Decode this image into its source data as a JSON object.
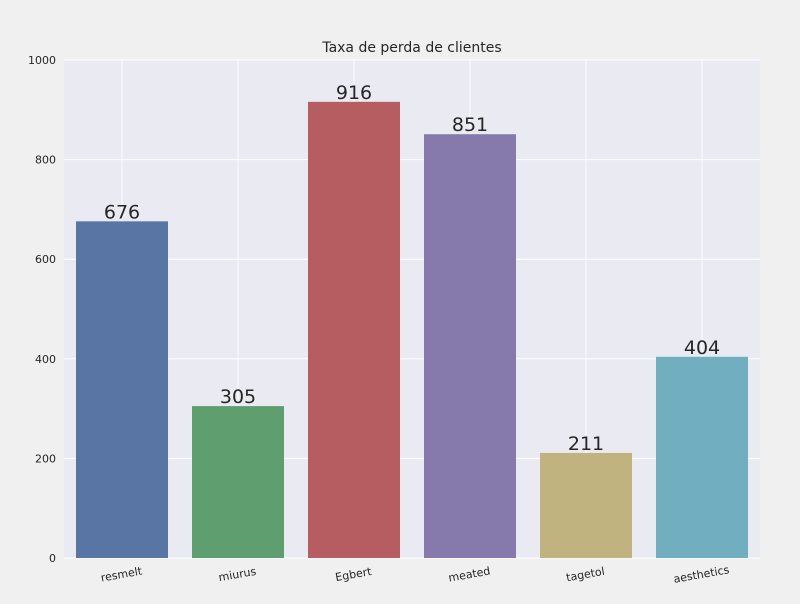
{
  "chart_data": {
    "type": "bar",
    "title": "Taxa de perda de clientes",
    "xlabel": "",
    "ylabel": "",
    "categories": [
      "resmelt",
      "miurus",
      "Egbert",
      "meated",
      "tagetol",
      "aesthetics"
    ],
    "values": [
      676,
      305,
      916,
      851,
      211,
      404
    ],
    "colors": [
      "#5975a4",
      "#5f9e6e",
      "#b55d60",
      "#857aab",
      "#c1b37f",
      "#71aec0"
    ],
    "ylim": [
      0,
      1000
    ],
    "yticks": [
      0,
      200,
      400,
      600,
      800,
      1000
    ],
    "grid": true,
    "legend": "none"
  }
}
